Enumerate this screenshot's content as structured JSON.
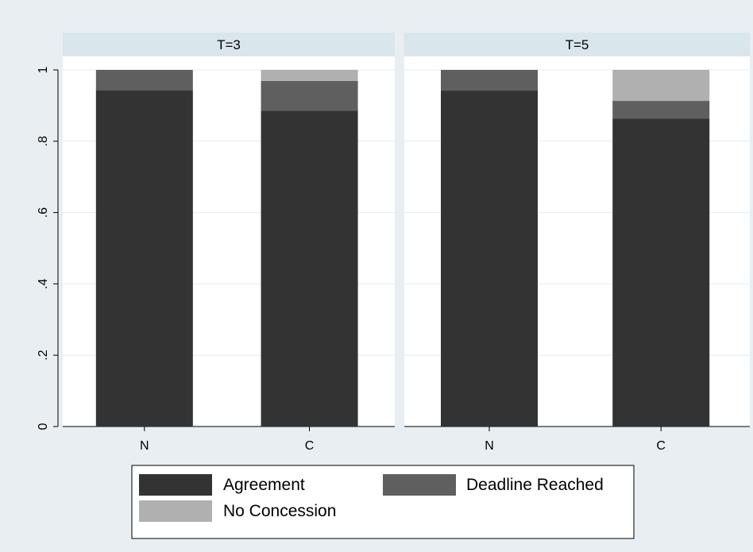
{
  "chart_data": {
    "type": "bar",
    "stacked": true,
    "panels": [
      "T=3",
      "T=5"
    ],
    "categories": [
      "N",
      "C"
    ],
    "ylim": [
      0,
      1
    ],
    "yticks": [
      {
        "value": 0,
        "label": "0"
      },
      {
        "value": 0.2,
        "label": ".2"
      },
      {
        "value": 0.4,
        "label": ".4"
      },
      {
        "value": 0.6,
        "label": ".6"
      },
      {
        "value": 0.8,
        "label": ".8"
      },
      {
        "value": 1,
        "label": "1"
      }
    ],
    "grid": true,
    "legend_position": "bottom",
    "series": [
      {
        "name": "Agreement",
        "color": "#333333",
        "values": [
          [
            0.943,
            0.886
          ],
          [
            0.942,
            0.863
          ]
        ]
      },
      {
        "name": "Deadline Reached",
        "color": "#5f5f5f",
        "values": [
          [
            0.057,
            0.083
          ],
          [
            0.058,
            0.05
          ]
        ]
      },
      {
        "name": "No Concession",
        "color": "#b0b0b0",
        "values": [
          [
            0.0,
            0.031
          ],
          [
            0.0,
            0.087
          ]
        ]
      }
    ]
  }
}
